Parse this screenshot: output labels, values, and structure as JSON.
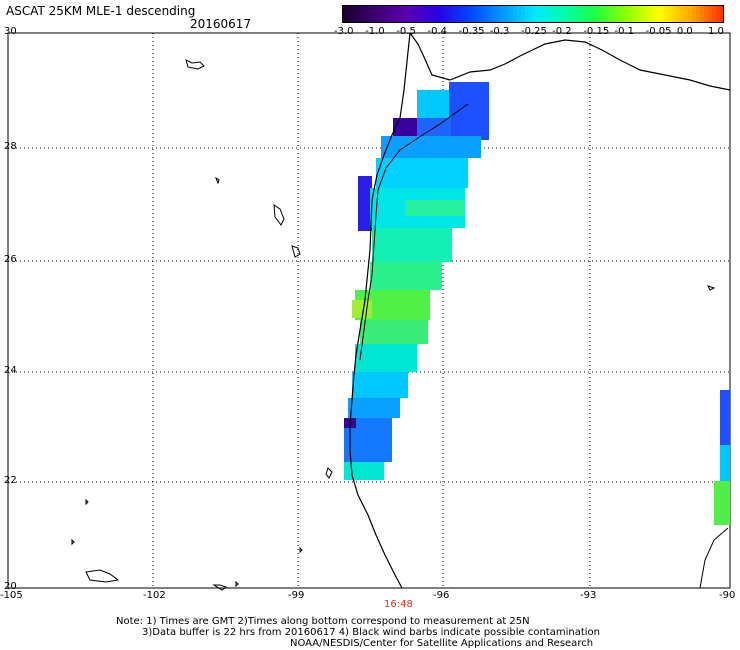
{
  "header": {
    "title": "ASCAT 25KM MLE-1 descending",
    "date": "20160617"
  },
  "colorbar": {
    "labels": [
      "-3.0",
      "-1.0",
      "-0.5",
      "-0.4",
      "-0.35",
      "-0.3",
      "-0.25",
      "-0.2",
      "-0.15",
      "-0.1",
      "-0.05",
      "0.0",
      "1.0"
    ],
    "colors": [
      "#1a0030",
      "#3d0070",
      "#5a00b0",
      "#2800e6",
      "#0046ff",
      "#0096ff",
      "#00e6ff",
      "#00ffaa",
      "#1eff3c",
      "#96ff00",
      "#ffff00",
      "#ffaa00",
      "#ff3200"
    ]
  },
  "axes": {
    "lat_labels": [
      "30",
      "28",
      "26",
      "24",
      "22",
      "20"
    ],
    "lon_labels": [
      "-105",
      "-102",
      "-99",
      "-96",
      "-93",
      "-90"
    ]
  },
  "time_label": "16:48",
  "notes": {
    "line1": "Note: 1) Times are GMT 2)Times along bottom correspond to measurement at 25N",
    "line2": "3)Data buffer is 22 hrs from 20160617 4) Black wind barbs indicate possible contamination",
    "line3": "NOAA/NESDIS/Center for Satellite Applications and Research"
  }
}
